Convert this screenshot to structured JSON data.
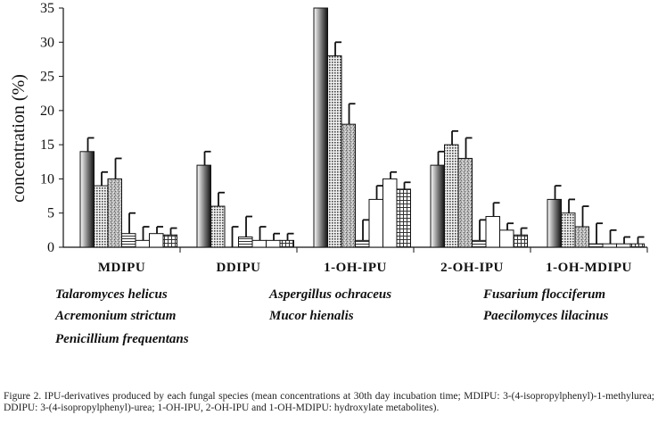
{
  "chart_data": {
    "type": "bar",
    "ylabel": "concentration (%)",
    "ylim": [
      0,
      35
    ],
    "yticks": [
      0,
      5,
      10,
      15,
      20,
      25,
      30,
      35
    ],
    "grid": false,
    "categories": [
      "MDIPU",
      "DDIPU",
      "1-OH-IPU",
      "2-OH-IPU",
      "1-OH-MDIPU"
    ],
    "series": [
      {
        "name": "Talaromyces helicus",
        "values": [
          14,
          12,
          35,
          12,
          7
        ],
        "errors": [
          2,
          2,
          0,
          2,
          2
        ]
      },
      {
        "name": "Acremonium strictum",
        "values": [
          9,
          6,
          28,
          15,
          5
        ],
        "errors": [
          2,
          2,
          2,
          2,
          2
        ]
      },
      {
        "name": "Penicillium frequentans",
        "values": [
          10,
          0,
          18,
          13,
          3
        ],
        "errors": [
          3,
          3,
          3,
          3,
          3
        ]
      },
      {
        "name": "Aspergillus ochraceus",
        "values": [
          2,
          1.5,
          1,
          1,
          0.5
        ],
        "errors": [
          3,
          3,
          3,
          3,
          3
        ]
      },
      {
        "name": "Mucor hienalis",
        "values": [
          1,
          1,
          7,
          4.5,
          0.5
        ],
        "errors": [
          2,
          2,
          2,
          2,
          2
        ]
      },
      {
        "name": "Fusarium flocciferum",
        "values": [
          2,
          1,
          10,
          2.5,
          0.5
        ],
        "errors": [
          1,
          1,
          1,
          1,
          1
        ]
      },
      {
        "name": "Paecilomyces lilacinus",
        "values": [
          1.8,
          1,
          8.5,
          1.8,
          0.5
        ],
        "errors": [
          1,
          1,
          1,
          1,
          1
        ]
      }
    ]
  },
  "legend": {
    "col1": [
      "Talaromyces helicus",
      "Acremonium strictum",
      "Penicillium frequentans"
    ],
    "col2": [
      "Aspergillus ochraceus",
      "Mucor hienalis"
    ],
    "col3": [
      "Fusarium flocciferum",
      "Paecilomyces lilacinus"
    ]
  },
  "caption": "Figure 2. IPU-derivatives produced by each fungal species (mean concentrations at 30th day incubation time; MDIPU: 3-(4-isopropylphenyl)-1-methylurea; DDIPU: 3-(4-isopropylphenyl)-urea; 1-OH-IPU, 2-OH-IPU and 1-OH-MDIPU: hydroxylate metabolites)."
}
